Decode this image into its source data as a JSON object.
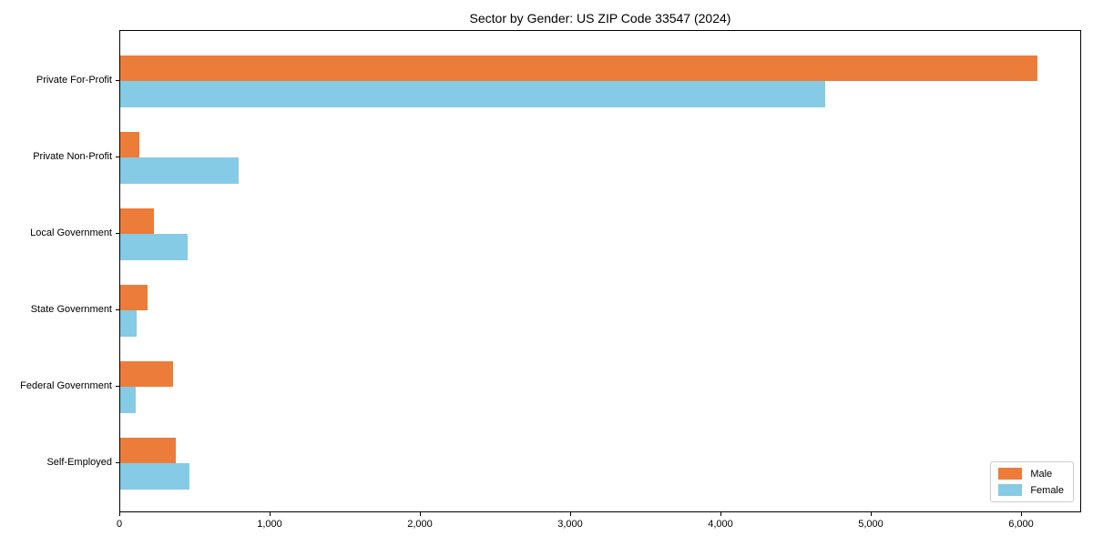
{
  "title": "Sector by Gender: US ZIP Code 33547 (2024)",
  "chart_data": {
    "type": "bar",
    "orientation": "horizontal",
    "title": "Sector by Gender: US ZIP Code 33547 (2024)",
    "categories": [
      "Private For-Profit",
      "Private Non-Profit",
      "Local Government",
      "State Government",
      "Federal Government",
      "Self-Employed"
    ],
    "series": [
      {
        "name": "Male",
        "color": "#ec7c3a",
        "values": [
          6100,
          130,
          225,
          180,
          350,
          370
        ]
      },
      {
        "name": "Female",
        "color": "#85cbe5",
        "values": [
          4690,
          790,
          450,
          110,
          105,
          460
        ]
      }
    ],
    "xlabel": "",
    "ylabel": "",
    "xlim": [
      0,
      6400
    ],
    "x_tick_values": [
      0,
      1000,
      2000,
      3000,
      4000,
      5000,
      6000
    ],
    "x_tick_labels": [
      "0",
      "1,000",
      "2,000",
      "3,000",
      "4,000",
      "5,000",
      "6,000"
    ],
    "legend_position": "lower right",
    "grid": false
  }
}
